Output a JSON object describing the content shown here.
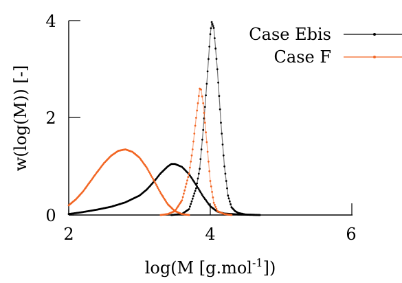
{
  "chart_data": {
    "type": "scatter",
    "xlabel": {
      "pre": "log(M [g.mol",
      "sup": "-1",
      "post": "])"
    },
    "ylabel": "w(log(M)) [-]",
    "xlim": [
      2,
      6
    ],
    "ylim": [
      0,
      4
    ],
    "xticks": [
      "2",
      "4",
      "6"
    ],
    "yticks": [
      "0",
      "2",
      "4"
    ],
    "legend_position": "top-right",
    "grid": false,
    "series": [
      {
        "name": "Case Ebis",
        "color": "#000000",
        "lines": [
          [
            [
              2.0,
              0.02
            ],
            [
              2.2,
              0.06
            ],
            [
              2.4,
              0.11
            ],
            [
              2.6,
              0.17
            ],
            [
              2.8,
              0.26
            ],
            [
              3.0,
              0.4
            ],
            [
              3.1,
              0.52
            ],
            [
              3.2,
              0.68
            ],
            [
              3.3,
              0.86
            ],
            [
              3.4,
              1.0
            ],
            [
              3.45,
              1.05
            ],
            [
              3.5,
              1.05
            ],
            [
              3.6,
              0.99
            ],
            [
              3.7,
              0.84
            ],
            [
              3.8,
              0.62
            ],
            [
              3.9,
              0.38
            ],
            [
              4.0,
              0.18
            ],
            [
              4.1,
              0.07
            ],
            [
              4.2,
              0.03
            ],
            [
              4.4,
              0.01
            ],
            [
              4.7,
              0.0
            ]
          ],
          [
            [
              3.45,
              0.0
            ],
            [
              3.6,
              0.02
            ],
            [
              3.7,
              0.12
            ],
            [
              3.8,
              0.55
            ],
            [
              3.85,
              0.95
            ],
            [
              3.9,
              1.75
            ],
            [
              3.95,
              2.7
            ],
            [
              4.0,
              3.72
            ],
            [
              4.02,
              3.97
            ],
            [
              4.05,
              3.85
            ],
            [
              4.1,
              3.0
            ],
            [
              4.15,
              1.9
            ],
            [
              4.2,
              1.0
            ],
            [
              4.25,
              0.4
            ],
            [
              4.3,
              0.16
            ],
            [
              4.35,
              0.08
            ],
            [
              4.4,
              0.04
            ],
            [
              4.5,
              0.01
            ],
            [
              4.7,
              0.0
            ]
          ]
        ]
      },
      {
        "name": "Case F",
        "color": "#f26522",
        "lines": [
          [
            [
              2.0,
              0.2
            ],
            [
              2.1,
              0.32
            ],
            [
              2.2,
              0.48
            ],
            [
              2.3,
              0.68
            ],
            [
              2.4,
              0.88
            ],
            [
              2.5,
              1.07
            ],
            [
              2.6,
              1.22
            ],
            [
              2.7,
              1.32
            ],
            [
              2.8,
              1.35
            ],
            [
              2.9,
              1.3
            ],
            [
              3.0,
              1.18
            ],
            [
              3.1,
              0.98
            ],
            [
              3.2,
              0.72
            ],
            [
              3.3,
              0.45
            ],
            [
              3.4,
              0.22
            ],
            [
              3.5,
              0.08
            ],
            [
              3.6,
              0.02
            ],
            [
              3.7,
              0.0
            ]
          ],
          [
            [
              3.3,
              0.0
            ],
            [
              3.4,
              0.02
            ],
            [
              3.5,
              0.08
            ],
            [
              3.6,
              0.3
            ],
            [
              3.7,
              0.85
            ],
            [
              3.75,
              1.35
            ],
            [
              3.8,
              2.0
            ],
            [
              3.85,
              2.6
            ],
            [
              3.87,
              2.58
            ],
            [
              3.9,
              2.3
            ],
            [
              3.95,
              1.5
            ],
            [
              4.0,
              0.7
            ],
            [
              4.05,
              0.25
            ],
            [
              4.1,
              0.08
            ],
            [
              4.2,
              0.02
            ],
            [
              4.3,
              0.0
            ]
          ]
        ]
      }
    ]
  }
}
